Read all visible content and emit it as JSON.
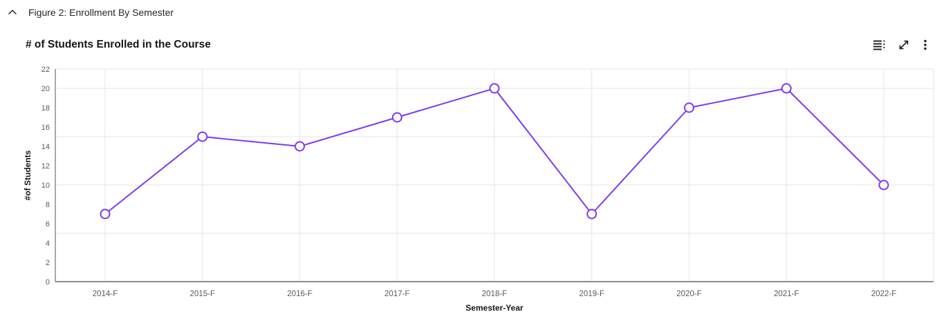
{
  "header": {
    "caption": "Figure 2: Enrollment By Semester",
    "collapse_icon": "chevron-up"
  },
  "card": {
    "title": "# of Students Enrolled in the Course",
    "toolbar": {
      "view_data_icon": "view-as-data-table",
      "expand_icon": "expand-chart",
      "menu_icon": "more-options"
    }
  },
  "chart_data": {
    "type": "line",
    "title": "# of Students Enrolled in the Course",
    "xlabel": "Semester-Year",
    "ylabel": "#of Students",
    "categories": [
      "2014-F",
      "2015-F",
      "2016-F",
      "2017-F",
      "2018-F",
      "2019-F",
      "2020-F",
      "2021-F",
      "2022-F"
    ],
    "values": [
      7,
      15,
      14,
      17,
      20,
      7,
      18,
      20,
      10
    ],
    "ylim": [
      0,
      22
    ],
    "yticks": [
      0,
      2,
      4,
      6,
      8,
      10,
      12,
      14,
      16,
      18,
      20,
      22
    ],
    "grid_values": [
      5,
      10,
      15,
      20
    ],
    "grid_on": true,
    "legend": "none",
    "line_color": "#7c3aed",
    "marker_fill": "#fafafa",
    "grid_color": "#e6e6e6",
    "axis_color": "#8c8c8c",
    "tick_color": "#595959"
  }
}
